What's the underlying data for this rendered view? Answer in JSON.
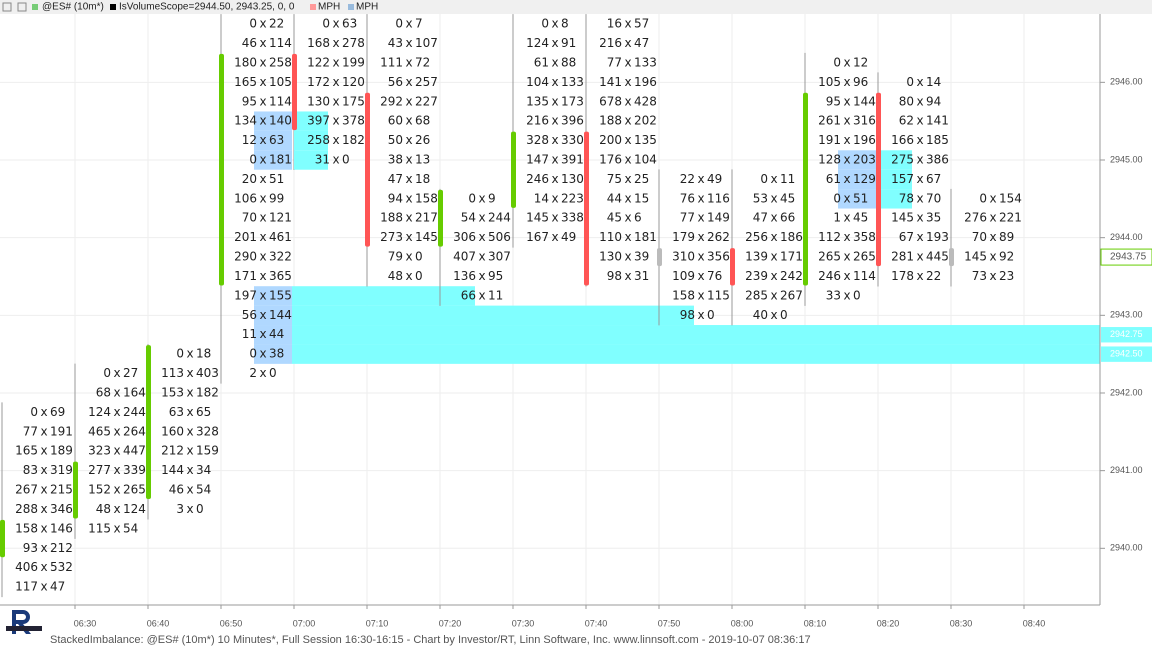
{
  "chart_data": {
    "type": "footprint",
    "header": {
      "symbol": "@ES# (10m*)",
      "items": [
        "IsVolumeScope=2944.50, 2943.25, 0, 0",
        "MPH",
        "MPH"
      ]
    },
    "footer": "StackedImbalance: @ES# (10m*) 10 Minutes*, Full Session 16:30-16:15 - Chart by Investor/RT, Linn Software, Inc. www.linnsoft.com - 2019-10-07 08:36:17",
    "separator": "x",
    "tick_size": 0.25,
    "ylim": [
      2939.27,
      2946.88
    ],
    "yticks": [
      {
        "value": 2940,
        "label": "2940.00"
      },
      {
        "value": 2941,
        "label": "2941.00"
      },
      {
        "value": 2942,
        "label": "2942.00"
      },
      {
        "value": 2943,
        "label": "2943.00"
      },
      {
        "value": 2944,
        "label": "2944.00"
      },
      {
        "value": 2945,
        "label": "2945.00"
      },
      {
        "value": 2946,
        "label": "2946.00"
      }
    ],
    "xticks": [
      "06:30",
      "06:40",
      "06:50",
      "07:00",
      "07:10",
      "07:20",
      "07:30",
      "07:40",
      "07:50",
      "08:00",
      "08:10",
      "08:20",
      "08:30",
      "08:40"
    ],
    "grid": true,
    "up_color": "#66cc00",
    "down_color": "#ff5555",
    "flat_color": "#bbbbbb",
    "ask_highlight_color": "#b0d8ff",
    "bid_highlight_color": "#80ffff",
    "zone_color": "#80ffff",
    "last_price": {
      "value": 2943.75,
      "label": "2943.75"
    },
    "columns": [
      {
        "high": 2941.75,
        "open": 2940,
        "close": 2940.25,
        "cells": [
          [
            0,
            69
          ],
          [
            77,
            191
          ],
          [
            165,
            189
          ],
          [
            83,
            319
          ],
          [
            267,
            215
          ],
          [
            288,
            346
          ],
          [
            158,
            146
          ],
          [
            93,
            212
          ],
          [
            406,
            532
          ],
          [
            117,
            47
          ]
        ]
      },
      {
        "high": 2942.25,
        "open": 2940.5,
        "close": 2941,
        "cells": [
          [
            0,
            27
          ],
          [
            68,
            164
          ],
          [
            124,
            244
          ],
          [
            465,
            264
          ],
          [
            323,
            447
          ],
          [
            277,
            339
          ],
          [
            152,
            265
          ],
          [
            48,
            124
          ],
          [
            115,
            54
          ]
        ]
      },
      {
        "high": 2942.5,
        "open": 2940.75,
        "close": 2942.5,
        "cells": [
          [
            0,
            18
          ],
          [
            113,
            403
          ],
          [
            153,
            182
          ],
          [
            63,
            65
          ],
          [
            160,
            328
          ],
          [
            212,
            159
          ],
          [
            144,
            34
          ],
          [
            46,
            54
          ],
          [
            3,
            0
          ]
        ]
      },
      {
        "high": 2946.75,
        "open": 2943.5,
        "close": 2946.25,
        "cells": [
          [
            0,
            22
          ],
          [
            46,
            114
          ],
          [
            180,
            258
          ],
          [
            165,
            105
          ],
          [
            95,
            114
          ],
          [
            134,
            140
          ],
          [
            12,
            63
          ],
          [
            0,
            181
          ],
          [
            20,
            51
          ],
          [
            106,
            99
          ],
          [
            70,
            121
          ],
          [
            201,
            461
          ],
          [
            290,
            322
          ],
          [
            171,
            365
          ],
          [
            197,
            155
          ],
          [
            56,
            144
          ],
          [
            11,
            44
          ],
          [
            0,
            38
          ],
          [
            2,
            0
          ]
        ],
        "ask_imbalance": [
          5,
          6,
          7,
          14,
          15,
          16,
          17
        ]
      },
      {
        "high": 2946.75,
        "open": 2946.25,
        "close": 2945.5,
        "cells": [
          [
            0,
            63
          ],
          [
            168,
            278
          ],
          [
            122,
            199
          ],
          [
            172,
            120
          ],
          [
            130,
            175
          ],
          [
            397,
            378
          ],
          [
            258,
            182
          ],
          [
            31,
            0
          ]
        ],
        "bid_imbalance": [
          5,
          6,
          7
        ]
      },
      {
        "high": 2946.75,
        "open": 2945.75,
        "close": 2944,
        "cells": [
          [
            0,
            7
          ],
          [
            43,
            107
          ],
          [
            111,
            72
          ],
          [
            56,
            257
          ],
          [
            292,
            227
          ],
          [
            60,
            68
          ],
          [
            50,
            26
          ],
          [
            38,
            13
          ],
          [
            47,
            18
          ],
          [
            94,
            158
          ],
          [
            188,
            217
          ],
          [
            273,
            145
          ],
          [
            79,
            0
          ],
          [
            48,
            0
          ]
        ]
      },
      {
        "high": 2944.5,
        "open": 2944,
        "close": 2944.5,
        "cells": [
          [
            0,
            9
          ],
          [
            54,
            244
          ],
          [
            306,
            506
          ],
          [
            407,
            307
          ],
          [
            136,
            95
          ],
          [
            66,
            11
          ]
        ]
      },
      {
        "high": 2946.75,
        "open": 2944.5,
        "close": 2945.25,
        "cells": [
          [
            0,
            8
          ],
          [
            124,
            91
          ],
          [
            61,
            88
          ],
          [
            104,
            133
          ],
          [
            135,
            173
          ],
          [
            216,
            396
          ],
          [
            328,
            330
          ],
          [
            147,
            391
          ],
          [
            246,
            130
          ],
          [
            14,
            223
          ],
          [
            145,
            338
          ],
          [
            167,
            49
          ]
        ]
      },
      {
        "high": 2946.75,
        "open": 2945.25,
        "close": 2943.5,
        "cells": [
          [
            16,
            57
          ],
          [
            216,
            47
          ],
          [
            77,
            133
          ],
          [
            141,
            196
          ],
          [
            678,
            428
          ],
          [
            188,
            202
          ],
          [
            200,
            135
          ],
          [
            176,
            104
          ],
          [
            75,
            25
          ],
          [
            44,
            15
          ],
          [
            45,
            6
          ],
          [
            110,
            181
          ],
          [
            130,
            39
          ],
          [
            98,
            31
          ]
        ]
      },
      {
        "high": 2944.75,
        "open": 2943.75,
        "close": 2943.75,
        "cells": [
          [
            22,
            49
          ],
          [
            76,
            116
          ],
          [
            77,
            149
          ],
          [
            179,
            262
          ],
          [
            310,
            356
          ],
          [
            109,
            76
          ],
          [
            158,
            115
          ],
          [
            98,
            0
          ]
        ]
      },
      {
        "high": 2944.75,
        "open": 2943.75,
        "close": 2943.5,
        "cells": [
          [
            0,
            11
          ],
          [
            53,
            45
          ],
          [
            47,
            66
          ],
          [
            256,
            186
          ],
          [
            139,
            171
          ],
          [
            239,
            242
          ],
          [
            285,
            267
          ],
          [
            40,
            0
          ]
        ]
      },
      {
        "high": 2946.25,
        "open": 2943.5,
        "close": 2945.75,
        "cells": [
          [
            0,
            12
          ],
          [
            105,
            96
          ],
          [
            95,
            144
          ],
          [
            261,
            316
          ],
          [
            191,
            196
          ],
          [
            128,
            203
          ],
          [
            61,
            129
          ],
          [
            0,
            51
          ],
          [
            1,
            45
          ],
          [
            112,
            358
          ],
          [
            265,
            265
          ],
          [
            246,
            114
          ],
          [
            33,
            0
          ]
        ],
        "ask_imbalance": [
          5,
          6,
          7
        ]
      },
      {
        "high": 2946,
        "open": 2945.75,
        "close": 2943.75,
        "cells": [
          [
            0,
            14
          ],
          [
            80,
            94
          ],
          [
            62,
            141
          ],
          [
            166,
            185
          ],
          [
            275,
            386
          ],
          [
            157,
            67
          ],
          [
            78,
            70
          ],
          [
            145,
            35
          ],
          [
            67,
            193
          ],
          [
            281,
            445
          ],
          [
            178,
            22
          ]
        ],
        "bid_imbalance": [
          4,
          5,
          6
        ]
      },
      {
        "high": 2944.5,
        "open": 2943.75,
        "close": 2943.75,
        "cells": [
          [
            0,
            154
          ],
          [
            276,
            221
          ],
          [
            70,
            89
          ],
          [
            145,
            92
          ],
          [
            73,
            23
          ]
        ]
      }
    ],
    "zones": [
      {
        "price": 2943.25,
        "column": 3,
        "end_column": 6
      },
      {
        "price": 2943,
        "column": 3,
        "end_column": 9
      },
      {
        "price": 2942.75,
        "column": 3,
        "label": "2942.75"
      },
      {
        "price": 2942.5,
        "column": 3,
        "label": "2942.50"
      }
    ]
  }
}
